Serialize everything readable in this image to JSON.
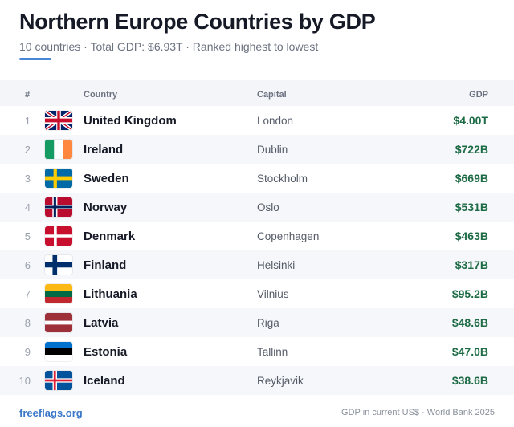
{
  "header": {
    "title": "Northern Europe Countries by GDP",
    "subtitle": "10 countries · Total GDP: $6.93T · Ranked highest to lowest",
    "accent_color": "#4a86d8"
  },
  "table": {
    "columns": {
      "rank": "#",
      "country": "Country",
      "capital": "Capital",
      "gdp": "GDP"
    },
    "rows": [
      {
        "rank": "1",
        "flag": "united-kingdom-flag-icon",
        "country": "United Kingdom",
        "capital": "London",
        "gdp": "$4.00T"
      },
      {
        "rank": "2",
        "flag": "ireland-flag-icon",
        "country": "Ireland",
        "capital": "Dublin",
        "gdp": "$722B"
      },
      {
        "rank": "3",
        "flag": "sweden-flag-icon",
        "country": "Sweden",
        "capital": "Stockholm",
        "gdp": "$669B"
      },
      {
        "rank": "4",
        "flag": "norway-flag-icon",
        "country": "Norway",
        "capital": "Oslo",
        "gdp": "$531B"
      },
      {
        "rank": "5",
        "flag": "denmark-flag-icon",
        "country": "Denmark",
        "capital": "Copenhagen",
        "gdp": "$463B"
      },
      {
        "rank": "6",
        "flag": "finland-flag-icon",
        "country": "Finland",
        "capital": "Helsinki",
        "gdp": "$317B"
      },
      {
        "rank": "7",
        "flag": "lithuania-flag-icon",
        "country": "Lithuania",
        "capital": "Vilnius",
        "gdp": "$95.2B"
      },
      {
        "rank": "8",
        "flag": "latvia-flag-icon",
        "country": "Latvia",
        "capital": "Riga",
        "gdp": "$48.6B"
      },
      {
        "rank": "9",
        "flag": "estonia-flag-icon",
        "country": "Estonia",
        "capital": "Tallinn",
        "gdp": "$47.0B"
      },
      {
        "rank": "10",
        "flag": "iceland-flag-icon",
        "country": "Iceland",
        "capital": "Reykjavik",
        "gdp": "$38.6B"
      }
    ],
    "gdp_color": "#1d6b45"
  },
  "footer": {
    "site": "freeflags.org",
    "source": "GDP in current US$ · World Bank 2025"
  }
}
